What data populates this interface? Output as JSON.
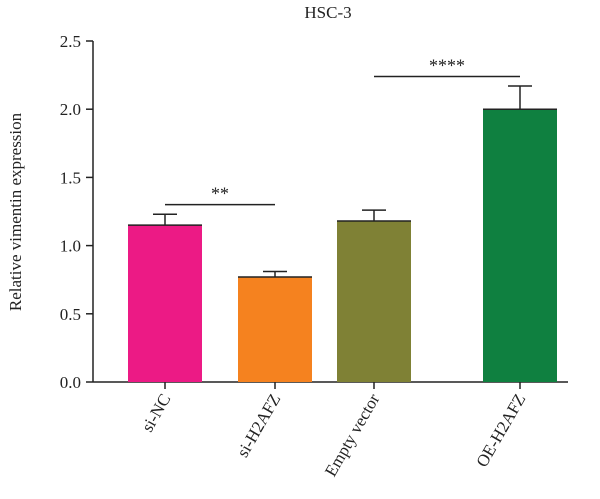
{
  "chart_data": {
    "type": "bar",
    "title": "HSC-3",
    "xlabel": "",
    "ylabel": "Relative vimentin expression",
    "ylim": [
      0,
      2.5
    ],
    "yticks": [
      "0.0",
      "0.5",
      "1.0",
      "1.5",
      "2.0",
      "2.5"
    ],
    "categories": [
      "si-NC",
      "si-H2AFZ",
      "Empty vector",
      "OE-H2AFZ"
    ],
    "values": [
      1.15,
      0.77,
      1.18,
      2.0
    ],
    "errors": [
      0.08,
      0.04,
      0.08,
      0.17
    ],
    "colors": [
      "#ec1a85",
      "#f5821f",
      "#7f8135",
      "#0f8040"
    ],
    "grid": false,
    "legend": "none",
    "significance": [
      {
        "label": "**",
        "from": 0,
        "to": 1,
        "y": 1.3
      },
      {
        "label": "****",
        "from": 2,
        "to": 3,
        "y": 2.24
      }
    ]
  }
}
